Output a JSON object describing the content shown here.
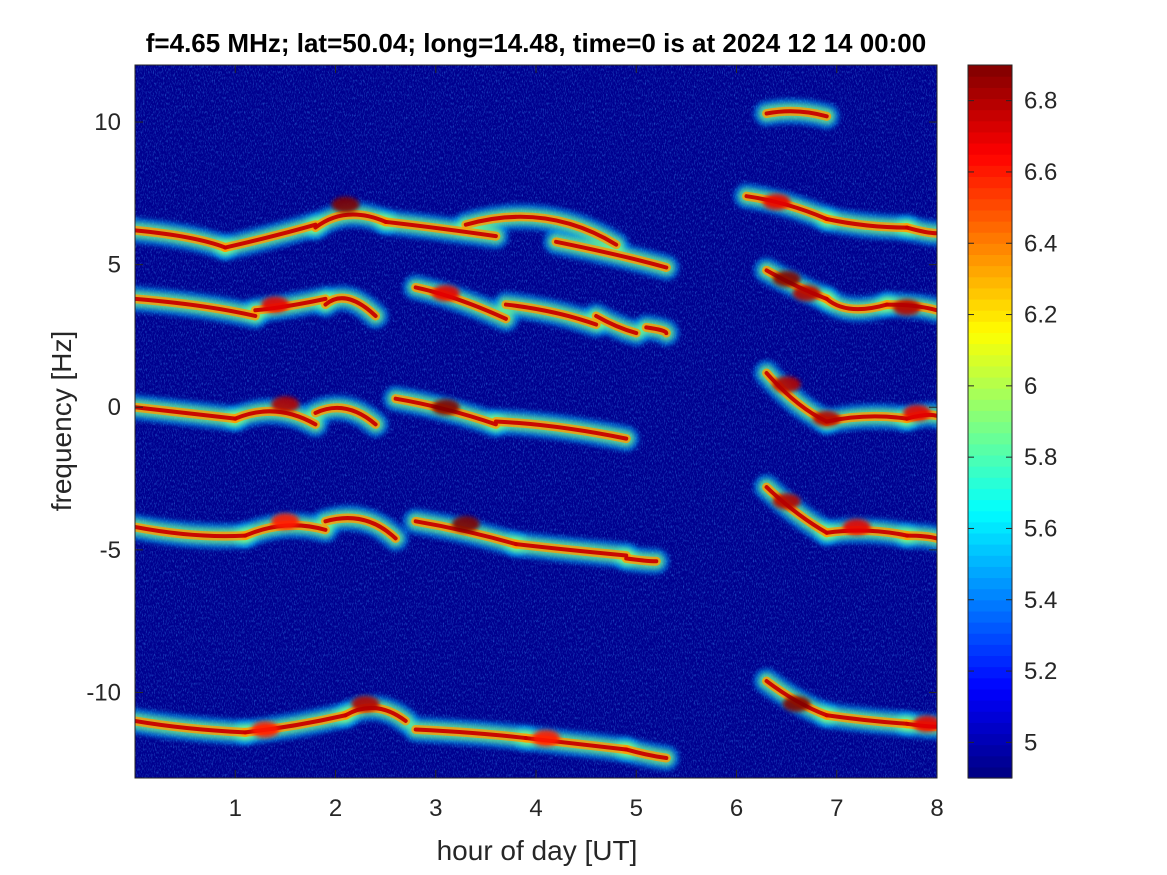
{
  "chart_data": {
    "type": "heatmap",
    "title": "f=4.65 MHz;  lat=50.04; long=14.48, time=0 is at 2024 12 14 00:00",
    "xlabel": "hour of day [UT]",
    "ylabel": "frequency [Hz]",
    "xlim": [
      0,
      8
    ],
    "ylim": [
      -13,
      12
    ],
    "x_ticks": [
      1,
      2,
      3,
      4,
      5,
      6,
      7,
      8
    ],
    "x_tick_labels": [
      "1",
      "2",
      "3",
      "4",
      "5",
      "6",
      "7",
      "8"
    ],
    "y_ticks": [
      10,
      5,
      0,
      -5,
      -10
    ],
    "y_tick_labels": [
      "10",
      "5",
      "0",
      "-5",
      "-10"
    ],
    "colorbar": {
      "colormap": "jet",
      "clim": [
        4.9,
        6.9
      ],
      "ticks": [
        6.8,
        6.6,
        6.4,
        6.2,
        6.0,
        5.8,
        5.6,
        5.4,
        5.2,
        5.0
      ],
      "tick_labels": [
        "6.8",
        "6.6",
        "6.4",
        "6.2",
        "6",
        "5.8",
        "5.6",
        "5.4",
        "5.2",
        "5"
      ]
    },
    "background_color": "#00008f",
    "segments": [
      [
        0.0,
        6.2,
        0.6,
        6.0,
        0.9,
        5.6
      ],
      [
        0.9,
        5.6,
        1.4,
        6.0,
        1.8,
        6.4
      ],
      [
        1.8,
        6.3,
        2.1,
        7.1,
        2.5,
        6.5
      ],
      [
        2.5,
        6.5,
        3.0,
        6.3,
        3.6,
        6.0
      ],
      [
        3.3,
        6.4,
        4.1,
        7.2,
        4.8,
        5.7
      ],
      [
        4.2,
        5.8,
        4.9,
        5.3,
        5.3,
        4.9
      ],
      [
        6.1,
        7.4,
        6.5,
        7.2,
        6.9,
        6.6
      ],
      [
        6.9,
        6.6,
        7.3,
        6.3,
        7.7,
        6.3
      ],
      [
        7.7,
        6.3,
        7.9,
        6.1,
        8.0,
        6.1
      ],
      [
        6.3,
        10.3,
        6.6,
        10.5,
        6.9,
        10.2
      ],
      [
        0.0,
        3.8,
        0.7,
        3.6,
        1.2,
        3.2
      ],
      [
        1.2,
        3.4,
        1.5,
        3.5,
        1.9,
        3.8
      ],
      [
        1.9,
        3.6,
        2.1,
        4.2,
        2.4,
        3.2
      ],
      [
        2.8,
        4.2,
        3.2,
        3.9,
        3.7,
        3.1
      ],
      [
        3.7,
        3.6,
        4.2,
        3.4,
        4.6,
        2.9
      ],
      [
        4.6,
        3.2,
        4.8,
        2.8,
        5.0,
        2.6
      ],
      [
        5.1,
        2.8,
        5.3,
        2.7,
        5.3,
        2.6
      ],
      [
        6.3,
        4.8,
        6.6,
        4.2,
        6.9,
        3.8
      ],
      [
        6.9,
        3.8,
        7.1,
        3.2,
        7.5,
        3.6
      ],
      [
        7.5,
        3.6,
        7.8,
        3.6,
        8.0,
        3.4
      ],
      [
        0.0,
        0.0,
        0.5,
        -0.2,
        1.0,
        -0.4
      ],
      [
        1.0,
        -0.4,
        1.4,
        0.2,
        1.8,
        -0.6
      ],
      [
        1.8,
        -0.2,
        2.1,
        0.3,
        2.4,
        -0.6
      ],
      [
        2.6,
        0.3,
        3.1,
        0.0,
        3.6,
        -0.6
      ],
      [
        3.6,
        -0.5,
        4.2,
        -0.6,
        4.9,
        -1.1
      ],
      [
        6.3,
        1.2,
        6.6,
        0.0,
        6.9,
        -0.5
      ],
      [
        6.9,
        -0.5,
        7.3,
        -0.2,
        7.7,
        -0.4
      ],
      [
        7.7,
        -0.4,
        7.9,
        -0.2,
        8.0,
        -0.3
      ],
      [
        0.0,
        -4.2,
        0.6,
        -4.6,
        1.1,
        -4.5
      ],
      [
        1.1,
        -4.5,
        1.5,
        -3.9,
        1.9,
        -4.3
      ],
      [
        1.9,
        -4.0,
        2.3,
        -3.6,
        2.6,
        -4.6
      ],
      [
        2.8,
        -4.0,
        3.3,
        -4.3,
        3.8,
        -4.8
      ],
      [
        3.8,
        -4.8,
        4.3,
        -5.0,
        4.9,
        -5.2
      ],
      [
        4.9,
        -5.3,
        5.1,
        -5.4,
        5.2,
        -5.4
      ],
      [
        6.3,
        -2.8,
        6.6,
        -3.8,
        6.9,
        -4.4
      ],
      [
        6.9,
        -4.4,
        7.3,
        -4.2,
        7.7,
        -4.5
      ],
      [
        7.7,
        -4.5,
        7.9,
        -4.5,
        8.0,
        -4.6
      ],
      [
        0.0,
        -11.0,
        0.5,
        -11.3,
        1.1,
        -11.4
      ],
      [
        1.1,
        -11.4,
        1.6,
        -11.2,
        2.1,
        -10.8
      ],
      [
        2.1,
        -10.8,
        2.4,
        -10.2,
        2.7,
        -11.0
      ],
      [
        2.8,
        -11.3,
        3.4,
        -11.4,
        3.9,
        -11.6
      ],
      [
        3.9,
        -11.6,
        4.4,
        -11.8,
        4.9,
        -12.0
      ],
      [
        4.9,
        -12.0,
        5.1,
        -12.2,
        5.3,
        -12.3
      ],
      [
        6.3,
        -9.6,
        6.6,
        -10.4,
        6.9,
        -10.8
      ],
      [
        6.9,
        -10.8,
        7.3,
        -11.0,
        7.7,
        -11.1
      ],
      [
        7.7,
        -11.1,
        7.9,
        -11.2,
        8.0,
        -11.2
      ]
    ],
    "hotspots": [
      [
        2.1,
        7.1,
        6.9
      ],
      [
        6.4,
        7.2,
        6.7
      ],
      [
        6.5,
        4.5,
        6.9
      ],
      [
        6.7,
        4.0,
        6.8
      ],
      [
        7.7,
        3.5,
        6.8
      ],
      [
        1.5,
        0.1,
        6.8
      ],
      [
        3.1,
        0.0,
        6.9
      ],
      [
        6.5,
        0.8,
        6.8
      ],
      [
        6.9,
        -0.4,
        6.8
      ],
      [
        7.8,
        -0.2,
        6.7
      ],
      [
        1.5,
        -4.0,
        6.6
      ],
      [
        3.3,
        -4.1,
        6.9
      ],
      [
        6.5,
        -3.3,
        6.8
      ],
      [
        7.2,
        -4.2,
        6.7
      ],
      [
        2.3,
        -10.4,
        6.8
      ],
      [
        1.3,
        -11.3,
        6.6
      ],
      [
        4.1,
        -11.6,
        6.6
      ],
      [
        6.6,
        -10.4,
        6.9
      ],
      [
        7.9,
        -11.1,
        6.7
      ],
      [
        3.1,
        4.0,
        6.7
      ],
      [
        1.4,
        3.6,
        6.7
      ]
    ]
  }
}
